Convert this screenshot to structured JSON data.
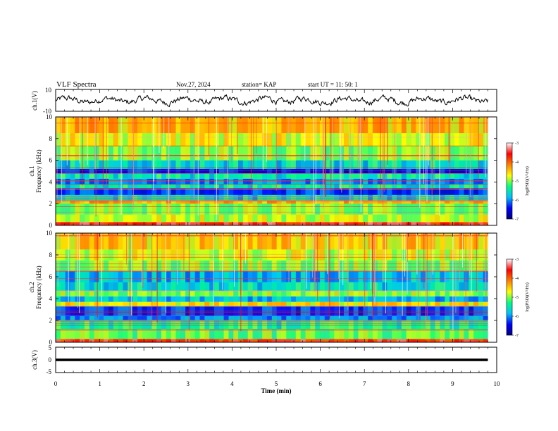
{
  "header": {
    "title": "VLF Spectra",
    "date": "Nov.27, 2024",
    "station": "station= KAP",
    "start_time": "start  UT =   11: 50: 1"
  },
  "chart_data": [
    {
      "type": "line",
      "name": "ch1-waveform",
      "ylabel": "ch.1(V)",
      "ylim": [
        -10,
        10
      ],
      "ytick_labels": [
        "10",
        "-10"
      ],
      "xlim": [
        0,
        10
      ],
      "note_values": "noisy voltage trace, approx. amplitude -4..4 V"
    },
    {
      "type": "heatmap",
      "name": "ch1-spectrogram",
      "ylabel_top": "ch.1",
      "ylabel": "Frequency (kHz)",
      "ylim": [
        0,
        10
      ],
      "ytick_labels": [
        "0",
        "2",
        "4",
        "6",
        "8",
        "10"
      ],
      "xlim": [
        0,
        10
      ],
      "data_end_min": 9.8,
      "colorbar": {
        "label": "log(PSD)(V²/Hz)",
        "range": [
          -7,
          -3
        ],
        "tick_labels": [
          "-3",
          "-4",
          "-5",
          "-6",
          "-7"
        ],
        "colors": [
          "#000080",
          "#0000ff",
          "#00c0ff",
          "#00ff80",
          "#ffff00",
          "#ff8000",
          "#ff0000",
          "#ffffff"
        ]
      },
      "band_levels": [
        {
          "from_khz": 0,
          "to_khz": 0.3,
          "level": -3.6
        },
        {
          "from_khz": 0.3,
          "to_khz": 1.0,
          "level": -4.8
        },
        {
          "from_khz": 1.0,
          "to_khz": 2.0,
          "level": -5.0
        },
        {
          "from_khz": 2.0,
          "to_khz": 2.3,
          "level": -4.4
        },
        {
          "from_khz": 2.3,
          "to_khz": 2.8,
          "level": -5.6
        },
        {
          "from_khz": 2.8,
          "to_khz": 3.4,
          "level": -6.3
        },
        {
          "from_khz": 3.4,
          "to_khz": 3.8,
          "level": -5.5
        },
        {
          "from_khz": 3.8,
          "to_khz": 4.3,
          "level": -6.0
        },
        {
          "from_khz": 4.3,
          "to_khz": 4.8,
          "level": -5.5
        },
        {
          "from_khz": 4.8,
          "to_khz": 5.2,
          "level": -6.4
        },
        {
          "from_khz": 5.2,
          "to_khz": 6.0,
          "level": -5.6
        },
        {
          "from_khz": 6.0,
          "to_khz": 7.3,
          "level": -5.0
        },
        {
          "from_khz": 7.3,
          "to_khz": 8.5,
          "level": -4.7
        },
        {
          "from_khz": 8.5,
          "to_khz": 10,
          "level": -4.4
        }
      ]
    },
    {
      "type": "heatmap",
      "name": "ch2-spectrogram",
      "ylabel_top": "ch.2",
      "ylabel": "Frequency (kHz)",
      "ylim": [
        0,
        10
      ],
      "ytick_labels": [
        "0",
        "2",
        "4",
        "6",
        "8",
        "10"
      ],
      "xlim": [
        0,
        10
      ],
      "data_end_min": 9.8,
      "colorbar": {
        "label": "log(PSD)(V²/Hz)",
        "range": [
          -7,
          -3
        ],
        "tick_labels": [
          "-3",
          "-4",
          "-5",
          "-6",
          "-7"
        ],
        "colors": [
          "#000080",
          "#0000ff",
          "#00c0ff",
          "#00ff80",
          "#ffff00",
          "#ff8000",
          "#ff0000",
          "#ffffff"
        ]
      },
      "band_levels": [
        {
          "from_khz": 0,
          "to_khz": 0.3,
          "level": -3.7
        },
        {
          "from_khz": 0.3,
          "to_khz": 1.2,
          "level": -5.1
        },
        {
          "from_khz": 1.2,
          "to_khz": 2.0,
          "level": -5.4
        },
        {
          "from_khz": 2.0,
          "to_khz": 2.4,
          "level": -6.0
        },
        {
          "from_khz": 2.4,
          "to_khz": 3.3,
          "level": -6.3
        },
        {
          "from_khz": 3.3,
          "to_khz": 3.7,
          "level": -4.6
        },
        {
          "from_khz": 3.7,
          "to_khz": 4.2,
          "level": -5.8
        },
        {
          "from_khz": 4.2,
          "to_khz": 4.7,
          "level": -5.0
        },
        {
          "from_khz": 4.7,
          "to_khz": 5.5,
          "level": -5.6
        },
        {
          "from_khz": 5.5,
          "to_khz": 6.5,
          "level": -5.8
        },
        {
          "from_khz": 6.5,
          "to_khz": 7.5,
          "level": -5.0
        },
        {
          "from_khz": 7.5,
          "to_khz": 8.5,
          "level": -4.8
        },
        {
          "from_khz": 8.5,
          "to_khz": 10,
          "level": -4.5
        }
      ]
    },
    {
      "type": "line",
      "name": "ch3-waveform",
      "ylabel": "ch.3(V)",
      "ylim": [
        -5,
        5
      ],
      "ytick_labels": [
        "5",
        "0",
        "-5"
      ],
      "xlim": [
        0,
        10
      ],
      "xlabel": "Time (min)",
      "xtick_labels": [
        "0",
        "1",
        "2",
        "3",
        "4",
        "5",
        "6",
        "7",
        "8",
        "9",
        "10"
      ],
      "constant_value": 0,
      "band_half_height_v": 0.5
    }
  ]
}
